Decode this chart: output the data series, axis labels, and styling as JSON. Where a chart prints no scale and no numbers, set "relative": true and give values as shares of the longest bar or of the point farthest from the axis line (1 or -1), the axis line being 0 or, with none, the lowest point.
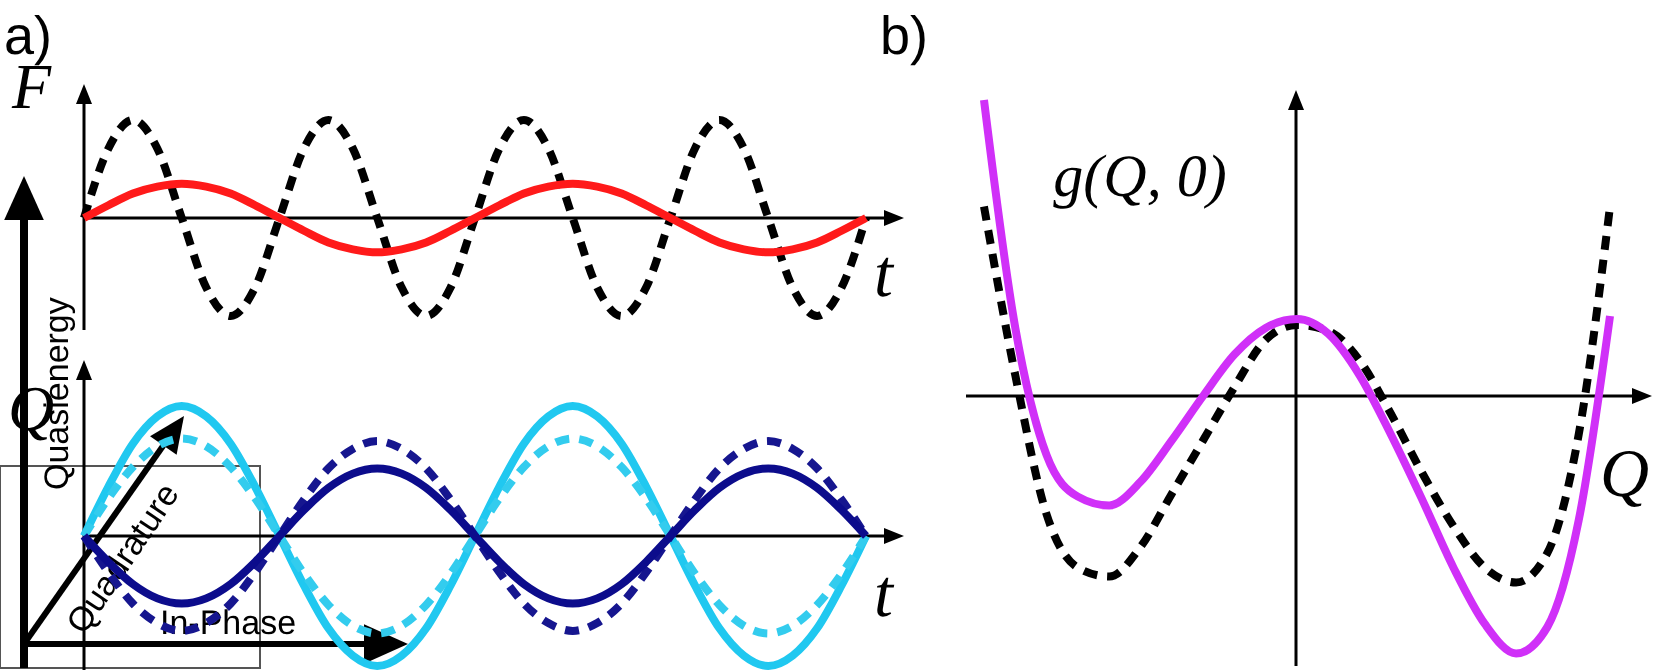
{
  "chart_data": [
    {
      "type": "line",
      "title": "a)",
      "xlabel": "t",
      "ylabel": "F",
      "relative": true,
      "categories": [
        null,
        null,
        null,
        null,
        null,
        null,
        null,
        null,
        null,
        null,
        null,
        null,
        null,
        null,
        null,
        null,
        null,
        null,
        null,
        null,
        null,
        null,
        null,
        null,
        null,
        null,
        null,
        null,
        null,
        null,
        null,
        null,
        null
      ],
      "series": [
        {
          "color": "#000000",
          "line_style": "dashed",
          "values": [
            0,
            0.71,
            1,
            0.71,
            0,
            -0.71,
            -1,
            -0.71,
            0,
            0.71,
            1,
            0.71,
            0,
            -0.71,
            -1,
            -0.71,
            0,
            0.71,
            1,
            0.71,
            0,
            -0.71,
            -1,
            -0.71,
            0,
            0.71,
            1,
            0.71,
            0,
            -0.71,
            -1,
            -0.71,
            0
          ]
        },
        {
          "color": "#ff1a1a",
          "line_style": "solid",
          "values": [
            0,
            0.13,
            0.25,
            0.32,
            0.35,
            0.32,
            0.25,
            0.13,
            0,
            -0.13,
            -0.25,
            -0.32,
            -0.35,
            -0.32,
            -0.25,
            -0.13,
            0,
            0.13,
            0.25,
            0.32,
            0.35,
            0.32,
            0.25,
            0.13,
            0,
            -0.13,
            -0.25,
            -0.32,
            -0.35,
            -0.32,
            -0.25,
            -0.13,
            0
          ]
        }
      ]
    },
    {
      "type": "line",
      "xlabel": "t",
      "ylabel": "Q",
      "relative": true,
      "annotations": [
        "Quasienergy",
        "Quadrature",
        "In-Phase"
      ],
      "categories": [
        null,
        null,
        null,
        null,
        null,
        null,
        null,
        null,
        null,
        null,
        null,
        null,
        null,
        null,
        null,
        null,
        null,
        null,
        null,
        null,
        null,
        null,
        null,
        null,
        null,
        null,
        null,
        null,
        null,
        null,
        null,
        null,
        null
      ],
      "series": [
        {
          "color": "#20c8f0",
          "line_style": "solid",
          "values": [
            0,
            0.38,
            0.71,
            0.92,
            1,
            0.92,
            0.71,
            0.38,
            0,
            -0.38,
            -0.71,
            -0.92,
            -1,
            -0.92,
            -0.71,
            -0.38,
            0,
            0.38,
            0.71,
            0.92,
            1,
            0.92,
            0.71,
            0.38,
            0,
            -0.38,
            -0.71,
            -0.92,
            -1,
            -0.92,
            -0.71,
            -0.38,
            0
          ]
        },
        {
          "color": "#33ccee",
          "line_style": "dashed",
          "values": [
            0,
            0.29,
            0.53,
            0.69,
            0.75,
            0.69,
            0.53,
            0.29,
            0,
            -0.29,
            -0.53,
            -0.69,
            -0.75,
            -0.69,
            -0.53,
            -0.29,
            0,
            0.29,
            0.53,
            0.69,
            0.75,
            0.69,
            0.53,
            0.29,
            0,
            -0.29,
            -0.53,
            -0.69,
            -0.75,
            -0.69,
            -0.53,
            -0.29,
            0
          ]
        },
        {
          "color": "#16168f",
          "line_style": "dashed",
          "values": [
            0,
            -0.28,
            -0.52,
            -0.67,
            -0.73,
            -0.67,
            -0.52,
            -0.28,
            0,
            0.28,
            0.52,
            0.67,
            0.73,
            0.67,
            0.52,
            0.28,
            0,
            -0.28,
            -0.52,
            -0.67,
            -0.73,
            -0.67,
            -0.52,
            -0.28,
            0,
            0.28,
            0.52,
            0.67,
            0.73,
            0.67,
            0.52,
            0.28,
            0
          ]
        },
        {
          "color": "#0c0c8c",
          "line_style": "solid",
          "values": [
            0,
            -0.2,
            -0.37,
            -0.48,
            -0.52,
            -0.48,
            -0.37,
            -0.2,
            0,
            0.2,
            0.37,
            0.48,
            0.52,
            0.48,
            0.37,
            0.2,
            0,
            -0.2,
            -0.37,
            -0.48,
            -0.52,
            -0.48,
            -0.37,
            -0.2,
            0,
            0.2,
            0.37,
            0.48,
            0.52,
            0.48,
            0.37,
            0.2,
            0
          ]
        }
      ]
    },
    {
      "type": "line",
      "title": "b)",
      "xlabel": "Q",
      "ylabel": "g(Q, 0)",
      "relative": true,
      "categories": [
        null,
        null,
        null,
        null,
        null,
        null,
        null,
        null,
        null,
        null,
        null,
        null,
        null,
        null,
        null,
        null,
        null,
        null,
        null,
        null,
        null
      ],
      "series": [
        {
          "color": "#000000",
          "line_style": "dashed",
          "values": [
            0.64,
            0.07,
            -0.4,
            -0.58,
            -0.61,
            -0.51,
            -0.33,
            -0.15,
            0.03,
            0.19,
            0.24,
            0.22,
            0.12,
            -0.06,
            -0.26,
            -0.44,
            -0.58,
            -0.63,
            -0.53,
            -0.13,
            0.64
          ]
        },
        {
          "color": "#d030f8",
          "line_style": "solid",
          "values": [
            1,
            0.23,
            -0.2,
            -0.34,
            -0.37,
            -0.29,
            -0.15,
            0,
            0.14,
            0.23,
            0.26,
            0.21,
            0.07,
            -0.13,
            -0.35,
            -0.58,
            -0.77,
            -0.87,
            -0.78,
            -0.42,
            0.27
          ]
        }
      ]
    }
  ]
}
